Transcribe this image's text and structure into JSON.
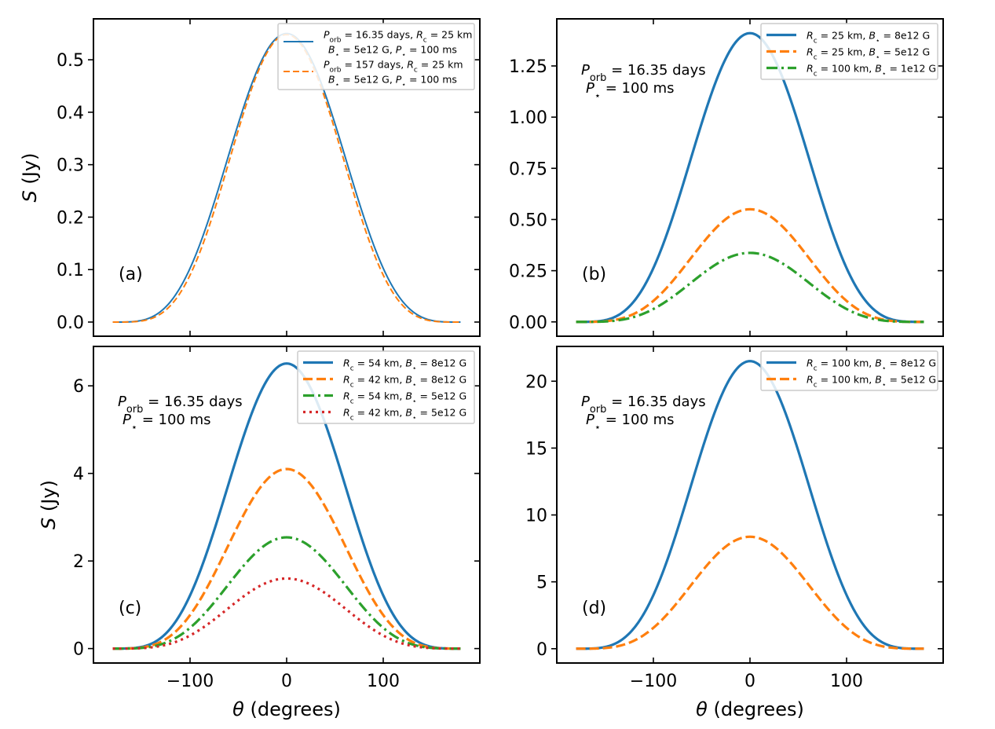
{
  "chart_data": [
    {
      "type": "line",
      "id": "a",
      "panel_label": "(a)",
      "xlabel": "",
      "ylabel": "S (Jy)",
      "xlim": [
        -200,
        200
      ],
      "ylim": [
        -0.027,
        0.578
      ],
      "xticks": [
        -100,
        0,
        100
      ],
      "xtick_labels": [
        "",
        "",
        ""
      ],
      "yticks": [
        0.0,
        0.1,
        0.2,
        0.3,
        0.4,
        0.5
      ],
      "ytick_labels": [
        "0.0",
        "0.1",
        "0.2",
        "0.3",
        "0.4",
        "0.5"
      ],
      "x_range": [
        -180,
        180
      ],
      "profile": "peak * ((1+cos(theta))/2)^n",
      "annotation": [],
      "legend": {
        "location": "upper-right"
      },
      "series": [
        {
          "name": "P_orb = 16.35 days, R_c = 25 km, B* = 5e12 G, P* = 100 ms",
          "legend_lines": [
            "P_orb = 16.35 days, R_c = 25 km",
            "B. = 5e12 G, P. = 100 ms"
          ],
          "color": "#1f77b4",
          "style": "solid",
          "peak": 0.55,
          "n": 1.9
        },
        {
          "name": "P_orb = 157 days, R_c = 25 km, B* = 5e12 G, P* = 100 ms",
          "legend_lines": [
            "P_orb = 157 days, R_c = 25 km",
            "B. = 5e12 G, P. = 100 ms"
          ],
          "color": "#ff7f0e",
          "style": "dashed",
          "peak": 0.548,
          "n": 2.05
        }
      ]
    },
    {
      "type": "line",
      "id": "b",
      "panel_label": "(b)",
      "xlabel": "",
      "ylabel": "",
      "xlim": [
        -200,
        200
      ],
      "ylim": [
        -0.07,
        1.48
      ],
      "xticks": [
        -100,
        0,
        100
      ],
      "xtick_labels": [
        "",
        "",
        ""
      ],
      "yticks": [
        0.0,
        0.25,
        0.5,
        0.75,
        1.0,
        1.25
      ],
      "ytick_labels": [
        "0.00",
        "0.25",
        "0.50",
        "0.75",
        "1.00",
        "1.25"
      ],
      "x_range": [
        -180,
        180
      ],
      "annotation": [
        "P_orb = 16.35 days",
        "P. = 100 ms"
      ],
      "legend": {
        "location": "upper-right"
      },
      "series": [
        {
          "name": "R_c = 25 km, B. = 8e12 G",
          "legend_lines": [
            "R_c = 25 km, B. = 8e12 G"
          ],
          "color": "#1f77b4",
          "style": "solid",
          "peak": 1.41,
          "n": 1.9
        },
        {
          "name": "R_c = 25 km, B. = 5e12 G",
          "legend_lines": [
            "R_c = 25 km, B. = 5e12 G"
          ],
          "color": "#ff7f0e",
          "style": "dashed",
          "peak": 0.55,
          "n": 1.9
        },
        {
          "name": "R_c = 100 km, B. = 1e12 G",
          "legend_lines": [
            "R_c = 100 km, B. = 1e12 G"
          ],
          "color": "#2ca02c",
          "style": "dashdot",
          "peak": 0.337,
          "n": 1.9
        }
      ]
    },
    {
      "type": "line",
      "id": "c",
      "panel_label": "(c)",
      "xlabel": "θ (degrees)",
      "ylabel": "S (Jy)",
      "xlim": [
        -200,
        200
      ],
      "ylim": [
        -0.33,
        6.9
      ],
      "xticks": [
        -100,
        0,
        100
      ],
      "xtick_labels": [
        "−100",
        "0",
        "100"
      ],
      "yticks": [
        0,
        2,
        4,
        6
      ],
      "ytick_labels": [
        "0",
        "2",
        "4",
        "6"
      ],
      "x_range": [
        -180,
        180
      ],
      "annotation": [
        "P_orb = 16.35 days",
        "P. = 100 ms"
      ],
      "legend": {
        "location": "upper-right"
      },
      "series": [
        {
          "name": "R_c = 54 km, B. = 8e12 G",
          "legend_lines": [
            "R_c = 54 km, B. = 8e12 G"
          ],
          "color": "#1f77b4",
          "style": "solid",
          "peak": 6.51,
          "n": 1.9
        },
        {
          "name": "R_c = 42 km, B. = 8e12 G",
          "legend_lines": [
            "R_c = 42 km, B. = 8e12 G"
          ],
          "color": "#ff7f0e",
          "style": "dashed",
          "peak": 4.1,
          "n": 1.9
        },
        {
          "name": "R_c = 54 km, B. = 5e12 G",
          "legend_lines": [
            "R_c = 54 km, B. = 5e12 G"
          ],
          "color": "#2ca02c",
          "style": "dashdot",
          "peak": 2.54,
          "n": 1.9
        },
        {
          "name": "R_c = 42 km, B. = 5e12 G",
          "legend_lines": [
            "R_c = 42 km, B. = 5e12 G"
          ],
          "color": "#d62728",
          "style": "dotted",
          "peak": 1.6,
          "n": 1.9
        }
      ]
    },
    {
      "type": "line",
      "id": "d",
      "panel_label": "(d)",
      "xlabel": "θ (degrees)",
      "ylabel": "",
      "xlim": [
        -200,
        200
      ],
      "ylim": [
        -1.07,
        22.6
      ],
      "xticks": [
        -100,
        0,
        100
      ],
      "xtick_labels": [
        "−100",
        "0",
        "100"
      ],
      "yticks": [
        0,
        5,
        10,
        15,
        20
      ],
      "ytick_labels": [
        "0",
        "5",
        "10",
        "15",
        "20"
      ],
      "x_range": [
        -180,
        180
      ],
      "annotation": [
        "P_orb = 16.35 days",
        "P. = 100 ms"
      ],
      "legend": {
        "location": "upper-right"
      },
      "series": [
        {
          "name": "R_c = 100 km, B. = 8e12 G",
          "legend_lines": [
            "R_c = 100 km, B. = 8e12 G"
          ],
          "color": "#1f77b4",
          "style": "solid",
          "peak": 21.5,
          "n": 1.9
        },
        {
          "name": "R_c = 100 km, B. = 5e12 G",
          "legend_lines": [
            "R_c = 100 km, B. = 5e12 G"
          ],
          "color": "#ff7f0e",
          "style": "dashed",
          "peak": 8.37,
          "n": 1.9
        }
      ]
    }
  ]
}
